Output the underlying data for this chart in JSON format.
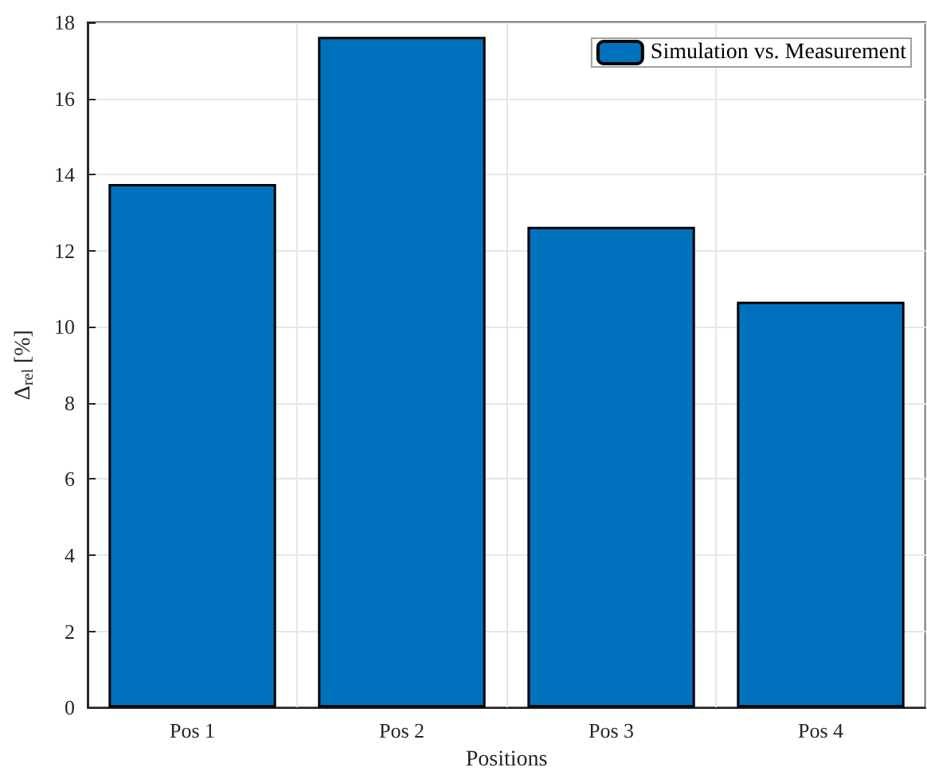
{
  "chart_data": {
    "type": "bar",
    "xlabel": "Positions",
    "ylabel": "Δ$_{rel}$ [%]",
    "categories": [
      "Pos 1",
      "Pos 2",
      "Pos 3",
      "Pos 4"
    ],
    "series": [
      {
        "name": "Simulation vs. Measurement",
        "color": "#0072bd",
        "values": [
          13.75,
          17.62,
          12.63,
          10.66
        ]
      }
    ],
    "ylim": [
      0,
      18
    ],
    "yticks": [
      0,
      2,
      4,
      6,
      8,
      10,
      12,
      14,
      16,
      18
    ],
    "grid": true,
    "legend": "top right"
  }
}
